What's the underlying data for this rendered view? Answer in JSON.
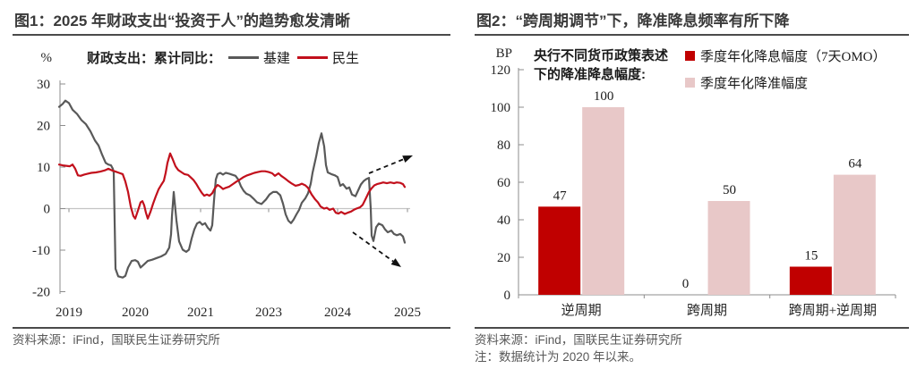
{
  "panels": {
    "left": {
      "title": "图1：2025 年财政支出“投资于人”的趋势愈发清晰",
      "source": "资料来源：iFind，国联民生证券研究所"
    },
    "right": {
      "title": "图2：“跨周期调节”下，降准降息频率有所下降",
      "source": "资料来源：iFind，国联民生证券研究所",
      "note": "注：数据统计为 2020 年以来。"
    }
  },
  "chart_data": [
    {
      "type": "line",
      "title": "图1：2025 年财政支出“投资于人”的趋势愈发清晰",
      "unit": "%",
      "legend_prefix": "财政支出：累计同比：",
      "legend_position": "top",
      "ylim": [
        -20,
        30
      ],
      "yticks": [
        30,
        20,
        10,
        0,
        -10,
        -20
      ],
      "xticklabels": [
        "2019",
        "2020",
        "2021",
        "2023",
        "2024",
        "2025"
      ],
      "grid": "zero-line-only",
      "series": [
        {
          "name": "基建",
          "color": "#595959",
          "points": [
            [
              66,
              24.5
            ],
            [
              70,
              25.2
            ],
            [
              73,
              26.0
            ],
            [
              77,
              25.4
            ],
            [
              81,
              23.8
            ],
            [
              86,
              22.8
            ],
            [
              91,
              21.3
            ],
            [
              96,
              20.3
            ],
            [
              101,
              18.6
            ],
            [
              106,
              16.4
            ],
            [
              110,
              15.2
            ],
            [
              114,
              13.0
            ],
            [
              118,
              11.0
            ],
            [
              121,
              10.6
            ],
            [
              124,
              10.4
            ],
            [
              126,
              9.6
            ],
            [
              127,
              8.6
            ],
            [
              129,
              -14.5
            ],
            [
              132,
              -16.3
            ],
            [
              137,
              -16.6
            ],
            [
              140,
              -16.2
            ],
            [
              143,
              -14.2
            ],
            [
              147,
              -12.6
            ],
            [
              151,
              -12.4
            ],
            [
              154,
              -12.8
            ],
            [
              157,
              -14.2
            ],
            [
              161,
              -13.4
            ],
            [
              165,
              -12.6
            ],
            [
              170,
              -12.3
            ],
            [
              175,
              -11.9
            ],
            [
              180,
              -11.5
            ],
            [
              185,
              -10.9
            ],
            [
              189,
              -9.4
            ],
            [
              191,
              -6.2
            ],
            [
              192,
              -1.9
            ],
            [
              194,
              4.0
            ],
            [
              197,
              -2.8
            ],
            [
              200,
              -7.9
            ],
            [
              204,
              -9.9
            ],
            [
              208,
              -10.4
            ],
            [
              211,
              -9.9
            ],
            [
              214,
              -7.2
            ],
            [
              217,
              -5.0
            ],
            [
              220,
              -3.6
            ],
            [
              223,
              -3.2
            ],
            [
              226,
              -3.9
            ],
            [
              229,
              -3.5
            ],
            [
              232,
              -4.6
            ],
            [
              235,
              -5.3
            ],
            [
              237,
              -4.0
            ],
            [
              239,
              2.0
            ],
            [
              241,
              7.0
            ],
            [
              243,
              8.3
            ],
            [
              246,
              8.6
            ],
            [
              249,
              8.2
            ],
            [
              252,
              8.6
            ],
            [
              256,
              8.4
            ],
            [
              260,
              8.1
            ],
            [
              263,
              7.9
            ],
            [
              266,
              7.0
            ],
            [
              269,
              5.4
            ],
            [
              272,
              4.3
            ],
            [
              275,
              3.6
            ],
            [
              279,
              3.2
            ],
            [
              283,
              2.4
            ],
            [
              287,
              1.5
            ],
            [
              292,
              1.1
            ],
            [
              297,
              2.2
            ],
            [
              301,
              3.4
            ],
            [
              305,
              4.0
            ],
            [
              309,
              4.0
            ],
            [
              313,
              3.2
            ],
            [
              316,
              1.2
            ],
            [
              319,
              -1.4
            ],
            [
              322,
              -2.9
            ],
            [
              325,
              -3.5
            ],
            [
              328,
              -2.6
            ],
            [
              331,
              -1.4
            ],
            [
              334,
              -0.3
            ],
            [
              337,
              1.4
            ],
            [
              341,
              2.5
            ],
            [
              344,
              3.7
            ],
            [
              347,
              6.0
            ],
            [
              349,
              8.6
            ],
            [
              353,
              12.5
            ],
            [
              356,
              15.8
            ],
            [
              359,
              18.1
            ],
            [
              362,
              15.0
            ],
            [
              364,
              10.5
            ],
            [
              366,
              8.7
            ],
            [
              370,
              8.3
            ],
            [
              374,
              8.0
            ],
            [
              377,
              7.6
            ],
            [
              380,
              5.5
            ],
            [
              383,
              5.9
            ],
            [
              387,
              4.8
            ],
            [
              390,
              5.1
            ],
            [
              393,
              3.4
            ],
            [
              397,
              3.0
            ],
            [
              400,
              4.4
            ],
            [
              403,
              5.8
            ],
            [
              406,
              6.6
            ],
            [
              409,
              7.1
            ],
            [
              412,
              7.4
            ],
            [
              414,
              0.0
            ],
            [
              415,
              -6.5
            ],
            [
              417,
              -7.8
            ],
            [
              420,
              -4.5
            ],
            [
              423,
              -3.6
            ],
            [
              427,
              -4.0
            ],
            [
              430,
              -5.0
            ],
            [
              433,
              -5.7
            ],
            [
              437,
              -5.3
            ],
            [
              440,
              -6.1
            ],
            [
              443,
              -6.4
            ],
            [
              447,
              -6.1
            ],
            [
              450,
              -6.7
            ],
            [
              452,
              -8.2
            ]
          ]
        },
        {
          "name": "民生",
          "color": "#c2101c",
          "points": [
            [
              66,
              10.6
            ],
            [
              70,
              10.4
            ],
            [
              74,
              10.3
            ],
            [
              78,
              10.2
            ],
            [
              81,
              10.6
            ],
            [
              84,
              9.6
            ],
            [
              87,
              8.0
            ],
            [
              90,
              7.9
            ],
            [
              94,
              8.2
            ],
            [
              98,
              8.4
            ],
            [
              102,
              8.6
            ],
            [
              107,
              8.7
            ],
            [
              112,
              8.9
            ],
            [
              117,
              9.2
            ],
            [
              121,
              9.6
            ],
            [
              125,
              9.2
            ],
            [
              129,
              8.9
            ],
            [
              133,
              8.6
            ],
            [
              137,
              8.3
            ],
            [
              140,
              6.5
            ],
            [
              143,
              4.0
            ],
            [
              146,
              0.5
            ],
            [
              149,
              -1.8
            ],
            [
              151,
              -2.4
            ],
            [
              154,
              -0.5
            ],
            [
              157,
              1.5
            ],
            [
              159,
              1.8
            ],
            [
              161,
              0.8
            ],
            [
              163,
              -1.0
            ],
            [
              165,
              -2.4
            ],
            [
              168,
              -0.8
            ],
            [
              171,
              1.2
            ],
            [
              174,
              3.0
            ],
            [
              177,
              4.6
            ],
            [
              180,
              5.7
            ],
            [
              183,
              6.7
            ],
            [
              185,
              8.6
            ],
            [
              187,
              11.0
            ],
            [
              190,
              13.3
            ],
            [
              193,
              11.8
            ],
            [
              196,
              10.2
            ],
            [
              199,
              9.3
            ],
            [
              203,
              8.7
            ],
            [
              206,
              8.3
            ],
            [
              210,
              8.1
            ],
            [
              213,
              7.5
            ],
            [
              216,
              6.9
            ],
            [
              219,
              6.0
            ],
            [
              222,
              4.9
            ],
            [
              225,
              3.9
            ],
            [
              228,
              3.1
            ],
            [
              231,
              3.4
            ],
            [
              234,
              3.1
            ],
            [
              237,
              3.7
            ],
            [
              240,
              4.9
            ],
            [
              243,
              5.7
            ],
            [
              246,
              5.3
            ],
            [
              249,
              4.7
            ],
            [
              252,
              5.0
            ],
            [
              256,
              5.3
            ],
            [
              260,
              5.9
            ],
            [
              264,
              6.5
            ],
            [
              268,
              7.0
            ],
            [
              272,
              7.6
            ],
            [
              276,
              8.0
            ],
            [
              280,
              8.3
            ],
            [
              284,
              8.6
            ],
            [
              288,
              8.8
            ],
            [
              292,
              9.0
            ],
            [
              296,
              9.0
            ],
            [
              300,
              8.8
            ],
            [
              304,
              8.5
            ],
            [
              307,
              7.9
            ],
            [
              311,
              8.5
            ],
            [
              314,
              7.9
            ],
            [
              318,
              7.3
            ],
            [
              322,
              6.6
            ],
            [
              326,
              6.0
            ],
            [
              330,
              5.5
            ],
            [
              334,
              5.7
            ],
            [
              337,
              6.0
            ],
            [
              341,
              5.6
            ],
            [
              344,
              5.0
            ],
            [
              348,
              3.4
            ],
            [
              352,
              2.2
            ],
            [
              355,
              1.5
            ],
            [
              358,
              0.5
            ],
            [
              362,
              0.0
            ],
            [
              365,
              0.2
            ],
            [
              368,
              -0.3
            ],
            [
              372,
              0.0
            ],
            [
              375,
              -1.0
            ],
            [
              378,
              -1.2
            ],
            [
              381,
              -0.8
            ],
            [
              385,
              -1.3
            ],
            [
              388,
              -1.0
            ],
            [
              392,
              -0.7
            ],
            [
              395,
              -0.3
            ],
            [
              398,
              0.0
            ],
            [
              402,
              0.3
            ],
            [
              405,
              0.9
            ],
            [
              408,
              2.2
            ],
            [
              412,
              4.0
            ],
            [
              415,
              4.9
            ],
            [
              418,
              5.6
            ],
            [
              421,
              5.9
            ],
            [
              425,
              6.1
            ],
            [
              428,
              6.3
            ],
            [
              432,
              6.1
            ],
            [
              436,
              6.3
            ],
            [
              440,
              6.1
            ],
            [
              443,
              6.3
            ],
            [
              447,
              6.2
            ],
            [
              450,
              5.9
            ],
            [
              452,
              5.2
            ]
          ]
        }
      ],
      "arrows": [
        {
          "direction": "up-right",
          "from": [
            412,
            194
          ],
          "to": [
            461,
            174
          ]
        },
        {
          "direction": "down-right",
          "from": [
            394,
            260
          ],
          "to": [
            448,
            299
          ]
        }
      ]
    },
    {
      "type": "bar",
      "title": "图2：“跨周期调节”下，降准降息频率有所下降",
      "unit": "BP",
      "annotation": "央行不同货币政策表述\n下的降准降息幅度:",
      "legend_position": "top-right",
      "categories": [
        "逆周期",
        "跨周期",
        "跨周期+逆周期"
      ],
      "series": [
        {
          "name": "季度年化降息幅度（7天OMO）",
          "color": "#c00000",
          "values": [
            47,
            0,
            15
          ]
        },
        {
          "name": "季度年化降准幅度",
          "color": "#e8c8c8",
          "values": [
            100,
            50,
            64
          ]
        }
      ],
      "ylim": [
        0,
        120
      ],
      "yticks": [
        0,
        20,
        40,
        60,
        80,
        100,
        120
      ],
      "value_labels": [
        [
          "47",
          "0",
          "15"
        ],
        [
          "100",
          "50",
          "64"
        ]
      ]
    }
  ]
}
